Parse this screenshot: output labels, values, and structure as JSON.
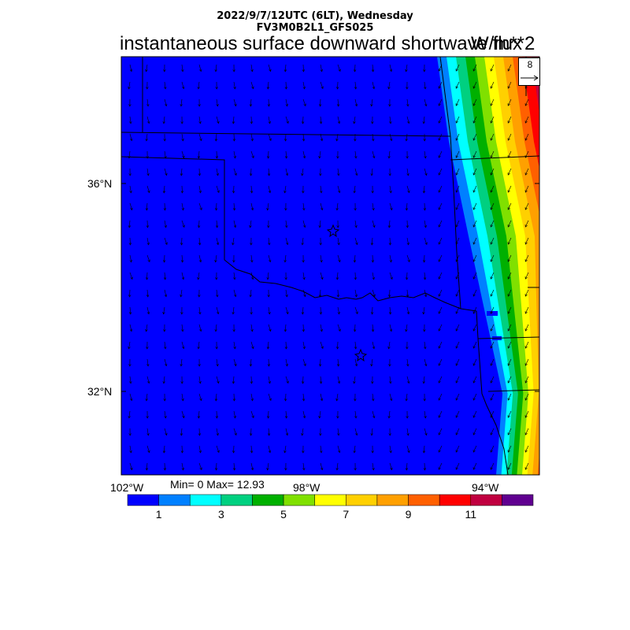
{
  "header": {
    "datetime": "2022/9/7/12UTC (6LT), Wednesday",
    "model": "FV3M0B2L1_GFS025"
  },
  "title": "instantaneous surface downward shortwave flux",
  "units": "W/m**2",
  "axes": {
    "lat_labels": [
      "36°N",
      "32°N"
    ],
    "lon_labels": [
      "102°W",
      "98°W",
      "94°W"
    ]
  },
  "stats": "Min= 0 Max= 12.93",
  "reference_vector": {
    "label": "8"
  },
  "colorbar": {
    "colors": [
      "#0000ff",
      "#0080ff",
      "#00ffff",
      "#00d080",
      "#00b000",
      "#80e000",
      "#ffff00",
      "#ffd000",
      "#ffa000",
      "#ff6000",
      "#ff0000",
      "#c00040",
      "#600090"
    ],
    "labels": [
      "1",
      "3",
      "5",
      "7",
      "9",
      "11"
    ]
  },
  "map": {
    "field_colors": [
      "#0000ff",
      "#0080ff",
      "#00ffff",
      "#00d080",
      "#00b000",
      "#80e000",
      "#ffff00",
      "#ffd000",
      "#ffa000",
      "#ff6000",
      "#ff0000",
      "#c00040"
    ],
    "features": [
      "state-boundaries",
      "wind-vectors",
      "city-stars"
    ]
  }
}
